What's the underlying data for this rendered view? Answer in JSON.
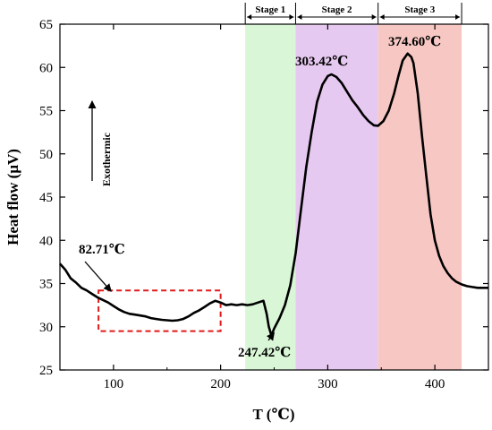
{
  "chart_data": {
    "type": "line",
    "xlabel": "T (℃)",
    "ylabel": "Heat flow (μV)",
    "xlim": [
      50,
      450
    ],
    "ylim": [
      25,
      65
    ],
    "x_ticks": [
      100,
      200,
      300,
      400
    ],
    "y_ticks": [
      25,
      30,
      35,
      40,
      45,
      50,
      55,
      60,
      65
    ],
    "stages": [
      {
        "label": "Stage 1",
        "x_start": 223,
        "x_end": 270,
        "color": "#d9f7d6"
      },
      {
        "label": "Stage 2",
        "x_start": 270,
        "x_end": 347,
        "color": "#e6c9f0"
      },
      {
        "label": "Stage 3",
        "x_start": 347,
        "x_end": 425,
        "color": "#f7c8c3"
      }
    ],
    "annotations": [
      {
        "text": "82.71℃",
        "x": 82.71
      },
      {
        "text": "247.42℃",
        "x": 247.42
      },
      {
        "text": "303.42℃",
        "x": 303.42
      },
      {
        "text": "374.60℃",
        "x": 374.6
      }
    ],
    "direction_label": "Exothermic",
    "highlight_region": {
      "x": [
        86,
        200
      ],
      "y": [
        29.5,
        34.2
      ]
    },
    "series": [
      {
        "values": [
          [
            50,
            37.3
          ],
          [
            55,
            36.6
          ],
          [
            60,
            35.6
          ],
          [
            65,
            35.1
          ],
          [
            70,
            34.5
          ],
          [
            75,
            34.2
          ],
          [
            80,
            33.8
          ],
          [
            85,
            33.4
          ],
          [
            90,
            33.1
          ],
          [
            95,
            32.8
          ],
          [
            100,
            32.4
          ],
          [
            105,
            32.0
          ],
          [
            110,
            31.7
          ],
          [
            115,
            31.5
          ],
          [
            120,
            31.4
          ],
          [
            125,
            31.3
          ],
          [
            130,
            31.2
          ],
          [
            135,
            31.0
          ],
          [
            140,
            30.9
          ],
          [
            145,
            30.8
          ],
          [
            150,
            30.75
          ],
          [
            155,
            30.7
          ],
          [
            160,
            30.75
          ],
          [
            165,
            30.9
          ],
          [
            170,
            31.2
          ],
          [
            175,
            31.6
          ],
          [
            180,
            31.9
          ],
          [
            185,
            32.3
          ],
          [
            190,
            32.7
          ],
          [
            195,
            33.0
          ],
          [
            200,
            32.8
          ],
          [
            205,
            32.5
          ],
          [
            210,
            32.6
          ],
          [
            215,
            32.5
          ],
          [
            220,
            32.6
          ],
          [
            225,
            32.5
          ],
          [
            230,
            32.6
          ],
          [
            235,
            32.8
          ],
          [
            240,
            33.0
          ],
          [
            243,
            31.5
          ],
          [
            245,
            30.0
          ],
          [
            247.42,
            29.0
          ],
          [
            250,
            29.8
          ],
          [
            255,
            31.0
          ],
          [
            260,
            32.5
          ],
          [
            265,
            34.8
          ],
          [
            270,
            38.5
          ],
          [
            275,
            43.5
          ],
          [
            280,
            48.5
          ],
          [
            285,
            52.5
          ],
          [
            290,
            56.0
          ],
          [
            295,
            58.0
          ],
          [
            300,
            59.0
          ],
          [
            303.42,
            59.2
          ],
          [
            308,
            58.9
          ],
          [
            313,
            58.2
          ],
          [
            318,
            57.2
          ],
          [
            323,
            56.2
          ],
          [
            328,
            55.4
          ],
          [
            333,
            54.5
          ],
          [
            338,
            53.8
          ],
          [
            343,
            53.3
          ],
          [
            347,
            53.25
          ],
          [
            352,
            53.8
          ],
          [
            357,
            55.0
          ],
          [
            362,
            57.0
          ],
          [
            366,
            59.0
          ],
          [
            370,
            60.8
          ],
          [
            374.6,
            61.6
          ],
          [
            378,
            61.2
          ],
          [
            380,
            60.5
          ],
          [
            384,
            57.0
          ],
          [
            388,
            52.0
          ],
          [
            392,
            47.5
          ],
          [
            396,
            43.0
          ],
          [
            400,
            40.0
          ],
          [
            404,
            38.2
          ],
          [
            408,
            37.0
          ],
          [
            412,
            36.2
          ],
          [
            416,
            35.6
          ],
          [
            420,
            35.2
          ],
          [
            425,
            34.9
          ],
          [
            430,
            34.7
          ],
          [
            435,
            34.6
          ],
          [
            440,
            34.5
          ],
          [
            445,
            34.5
          ],
          [
            450,
            34.5
          ]
        ]
      }
    ]
  }
}
